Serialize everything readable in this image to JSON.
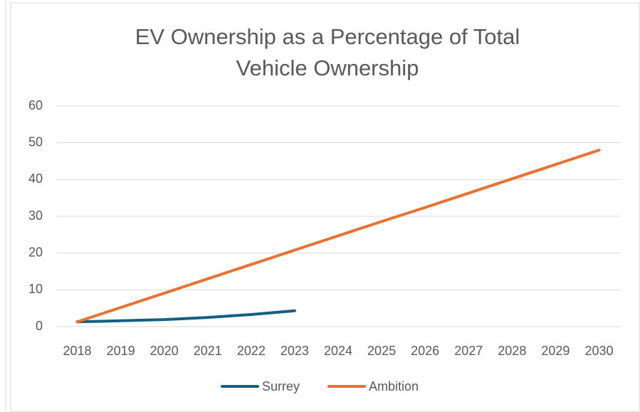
{
  "chart_data": {
    "type": "line",
    "title": "EV Ownership as a Percentage of Total Vehicle Ownership",
    "categories": [
      "2018",
      "2019",
      "2020",
      "2021",
      "2022",
      "2023",
      "2024",
      "2025",
      "2026",
      "2027",
      "2028",
      "2029",
      "2030"
    ],
    "series": [
      {
        "name": "Surrey",
        "color": "#156082",
        "values": [
          1.3,
          1.6,
          1.9,
          2.5,
          3.3,
          4.3,
          null,
          null,
          null,
          null,
          null,
          null,
          null
        ]
      },
      {
        "name": "Ambition",
        "color": "#e97132",
        "values": [
          1.3,
          5.2,
          9.1,
          13.0,
          16.9,
          20.8,
          24.7,
          28.6,
          32.4,
          36.3,
          40.2,
          44.1,
          48.0
        ]
      }
    ],
    "ylim": [
      0,
      60
    ],
    "yticks": [
      0,
      10,
      20,
      30,
      40,
      50,
      60
    ],
    "grid": true,
    "legend": "bottom"
  }
}
